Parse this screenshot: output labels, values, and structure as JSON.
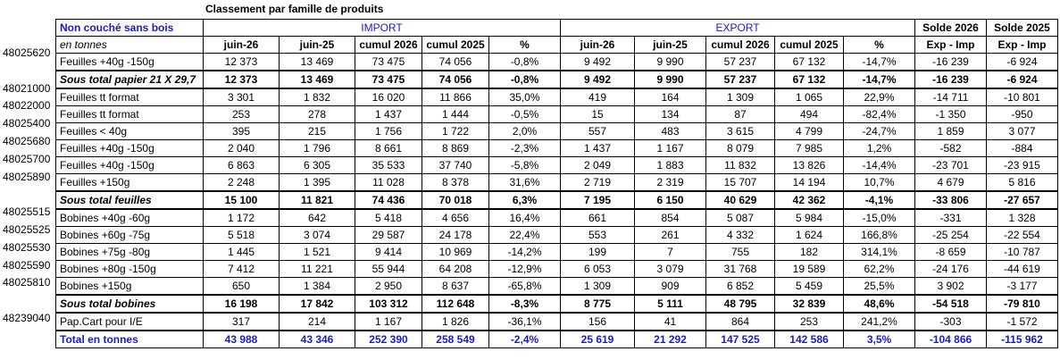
{
  "title": "Classement par famille de produits",
  "header": {
    "family": "Non couché sans bois",
    "import": "IMPORT",
    "export": "EXPORT",
    "solde_2026": "Solde 2026",
    "solde_2025": "Solde 2025"
  },
  "subheader": {
    "unit": "en tonnes",
    "cols": [
      "juin-26",
      "juin-25",
      "cumul 2026",
      "cumul 2025",
      "%",
      "juin-26",
      "juin-25",
      "cumul 2026",
      "cumul 2025",
      "%",
      "Exp - Imp",
      "Exp - Imp"
    ]
  },
  "rows": [
    {
      "code": "48025620",
      "label": "Feuilles +40g -150g",
      "values": [
        "12 373",
        "13 469",
        "73 475",
        "74 056",
        "-0,8%",
        "9 492",
        "9 990",
        "57 237",
        "67 132",
        "-14,7%",
        "-16 239",
        "-6 924"
      ],
      "style": "normal"
    },
    {
      "code": "",
      "label": "Sous total papier 21 X 29,7",
      "values": [
        "12 373",
        "13 469",
        "73 475",
        "74 056",
        "-0,8%",
        "9 492",
        "9 990",
        "57 237",
        "67 132",
        "-14,7%",
        "-16 239",
        "-6 924"
      ],
      "style": "subtotal"
    },
    {
      "code": "48021000",
      "label": "Feuilles tt format",
      "values": [
        "3 301",
        "1 832",
        "16 020",
        "11 866",
        "35,0%",
        "419",
        "164",
        "1 309",
        "1 065",
        "22,9%",
        "-14 711",
        "-10 801"
      ],
      "style": "normal"
    },
    {
      "code": "48022000",
      "label": "Feuilles tt format",
      "values": [
        "253",
        "278",
        "1 437",
        "1 444",
        "-0,5%",
        "15",
        "134",
        "87",
        "494",
        "-82,4%",
        "-1 350",
        "-950"
      ],
      "style": "normal"
    },
    {
      "code": "48025400",
      "label": "Feuilles < 40g",
      "values": [
        "395",
        "215",
        "1 756",
        "1 722",
        "2,0%",
        "557",
        "483",
        "3 615",
        "4 799",
        "-24,7%",
        "1 859",
        "3 077"
      ],
      "style": "normal"
    },
    {
      "code": "48025680",
      "label": "Feuilles +40g -150g",
      "values": [
        "2 040",
        "1 796",
        "8 661",
        "8 869",
        "-2,3%",
        "1 437",
        "1 167",
        "8 079",
        "7 985",
        "1,2%",
        "-582",
        "-884"
      ],
      "style": "normal"
    },
    {
      "code": "48025700",
      "label": "Feuilles +40g -150g",
      "values": [
        "6 863",
        "6 305",
        "35 533",
        "37 740",
        "-5,8%",
        "2 049",
        "1 883",
        "11 832",
        "13 826",
        "-14,4%",
        "-23 701",
        "-23 915"
      ],
      "style": "normal"
    },
    {
      "code": "48025890",
      "label": "Feuilles +150g",
      "values": [
        "2 248",
        "1 395",
        "11 028",
        "8 378",
        "31,6%",
        "2 719",
        "2 319",
        "15 707",
        "14 194",
        "10,7%",
        "4 679",
        "5 816"
      ],
      "style": "normal"
    },
    {
      "code": "",
      "label": "Sous total feuilles",
      "values": [
        "15 100",
        "11 821",
        "74 436",
        "70 018",
        "6,3%",
        "7 195",
        "6 150",
        "40 629",
        "42 362",
        "-4,1%",
        "-33 806",
        "-27 657"
      ],
      "style": "subtotal"
    },
    {
      "code": "48025515",
      "label": "Bobines +40g -60g",
      "values": [
        "1 172",
        "642",
        "5 418",
        "4 656",
        "16,4%",
        "661",
        "854",
        "5 087",
        "5 984",
        "-15,0%",
        "-331",
        "1 328"
      ],
      "style": "normal"
    },
    {
      "code": "48025525",
      "label": "Bobines +60g -75g",
      "values": [
        "5 518",
        "3 074",
        "29 587",
        "24 178",
        "22,4%",
        "553",
        "261",
        "4 332",
        "1 624",
        "166,8%",
        "-25 254",
        "-22 554"
      ],
      "style": "normal"
    },
    {
      "code": "48025530",
      "label": "Bobines +75g -80g",
      "values": [
        "1 445",
        "1 521",
        "9 414",
        "10 969",
        "-14,2%",
        "199",
        "7",
        "755",
        "182",
        "314,1%",
        "-8 659",
        "-10 787"
      ],
      "style": "normal"
    },
    {
      "code": "48025590",
      "label": "Bobines +80g -150g",
      "values": [
        "7 412",
        "11 221",
        "55 944",
        "64 208",
        "-12,9%",
        "6 053",
        "3 079",
        "31 768",
        "19 589",
        "62,2%",
        "-24 176",
        "-44 619"
      ],
      "style": "normal"
    },
    {
      "code": "48025810",
      "label": "Bobines +150g",
      "values": [
        "650",
        "1 384",
        "2 950",
        "8 637",
        "-65,8%",
        "1 309",
        "909",
        "6 852",
        "5 459",
        "25,5%",
        "3 902",
        "-3 177"
      ],
      "style": "normal"
    },
    {
      "code": "",
      "label": "Sous total bobines",
      "values": [
        "16 198",
        "17 842",
        "103 312",
        "112 648",
        "-8,3%",
        "8 775",
        "5 111",
        "48 795",
        "32 839",
        "48,6%",
        "-54 518",
        "-79 810"
      ],
      "style": "subtotal"
    },
    {
      "code": "48239040",
      "label": "Pap.Cart pour I/E",
      "values": [
        "317",
        "214",
        "1 167",
        "1 826",
        "-36,1%",
        "156",
        "41",
        "864",
        "253",
        "241,2%",
        "-303",
        "-1 572"
      ],
      "style": "normal"
    },
    {
      "code": "",
      "label": "Total en tonnes",
      "values": [
        "43 988",
        "43 346",
        "252 390",
        "258 549",
        "-2,4%",
        "25 619",
        "21 292",
        "147 525",
        "142 586",
        "3,5%",
        "-104 866",
        "-115 962"
      ],
      "style": "total"
    }
  ]
}
